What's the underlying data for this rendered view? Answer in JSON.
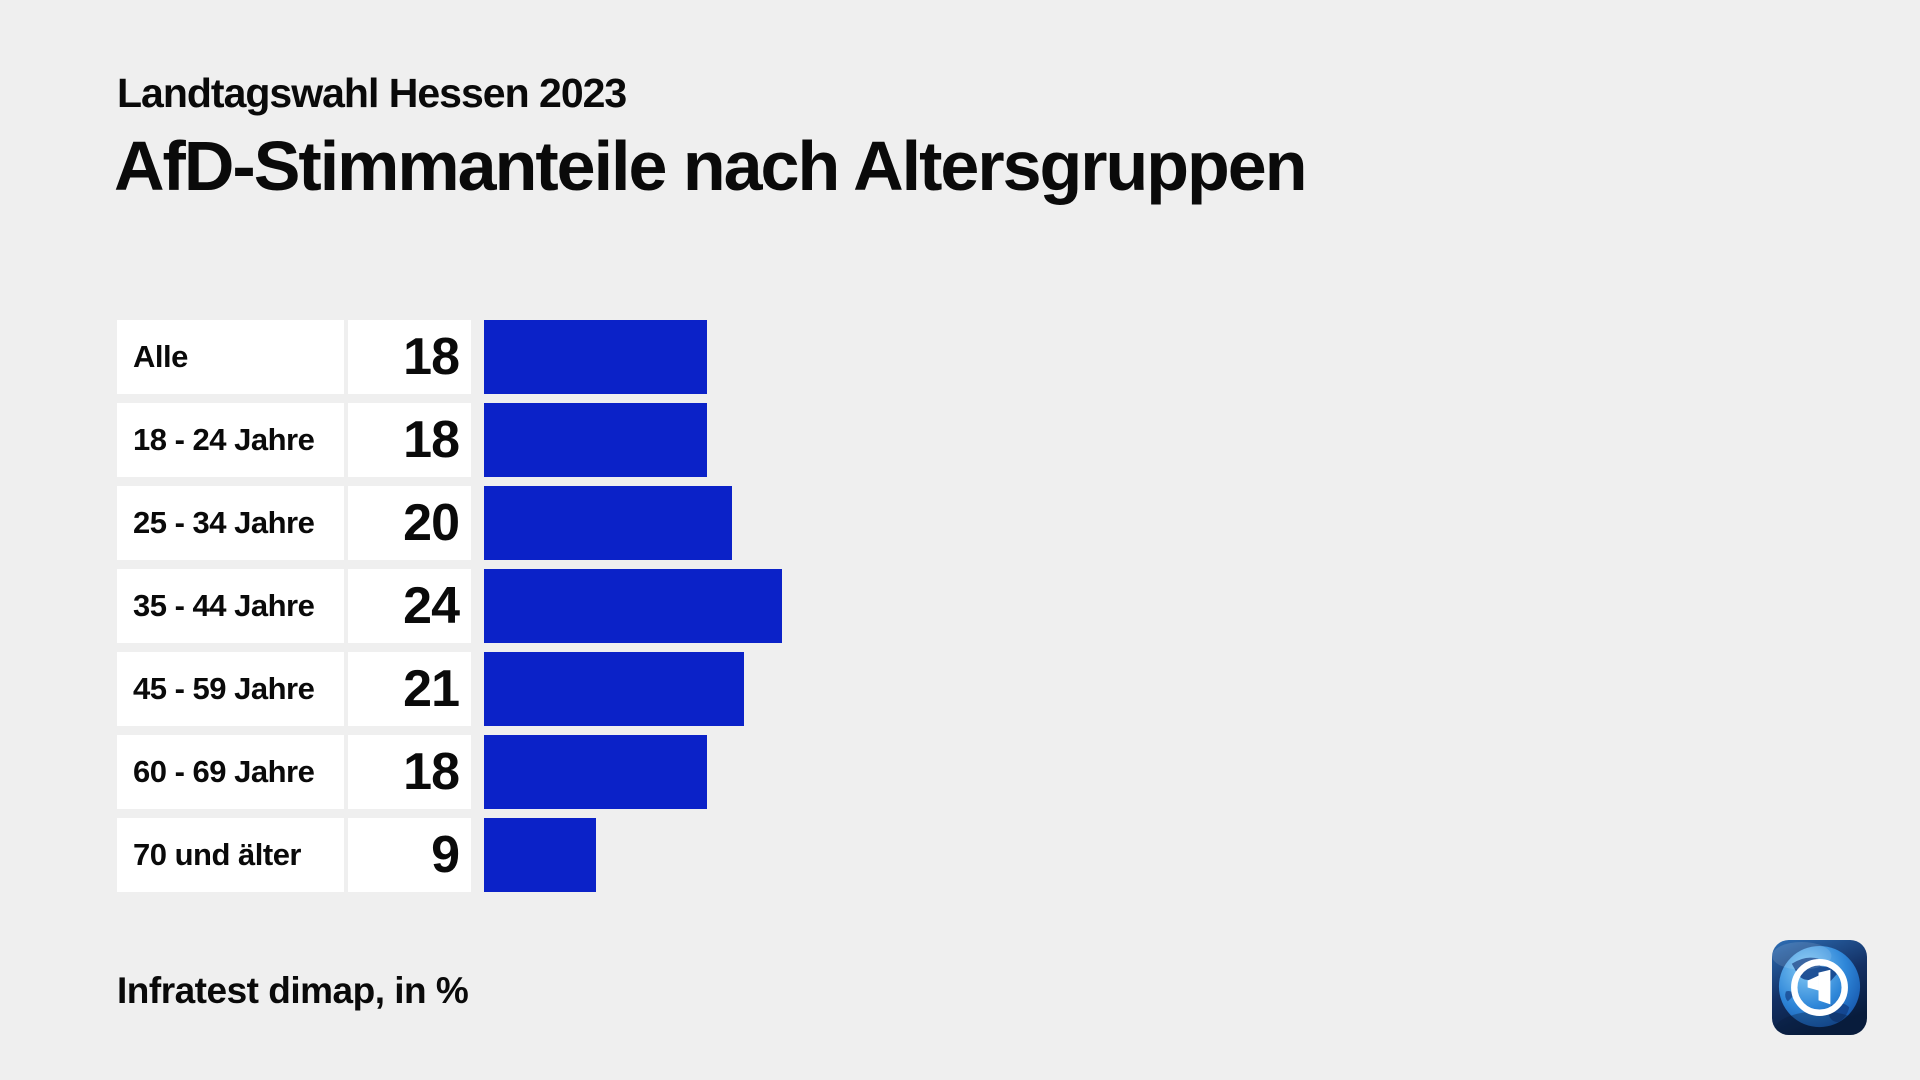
{
  "page": {
    "background_color": "#efefef",
    "text_color": "#0a0a0a"
  },
  "header": {
    "subtitle": "Landtagswahl Hessen 2023",
    "title": "AfD-Stimmanteile nach Altersgruppen"
  },
  "footer": {
    "source": "Infratest dimap, in %"
  },
  "icons": {
    "brand": "ard-tagesschau-globe-logo"
  },
  "chart_data": {
    "type": "bar",
    "orientation": "horizontal",
    "title": "AfD-Stimmanteile nach Altersgruppen",
    "subtitle": "Landtagswahl Hessen 2023",
    "unit": "%",
    "source": "Infratest dimap",
    "categories": [
      "Alle",
      "18 - 24 Jahre",
      "25 - 34 Jahre",
      "35 - 44 Jahre",
      "45 - 59 Jahre",
      "60 - 69 Jahre",
      "70 und älter"
    ],
    "values": [
      18,
      18,
      20,
      24,
      21,
      18,
      9
    ],
    "value_labels": [
      "18",
      "18",
      "20",
      "24",
      "21",
      "18",
      "9"
    ],
    "xlim": [
      0,
      24
    ],
    "grid": false,
    "legend": false,
    "bar_color": "#0b22c8",
    "row_box_color": "#ffffff"
  }
}
